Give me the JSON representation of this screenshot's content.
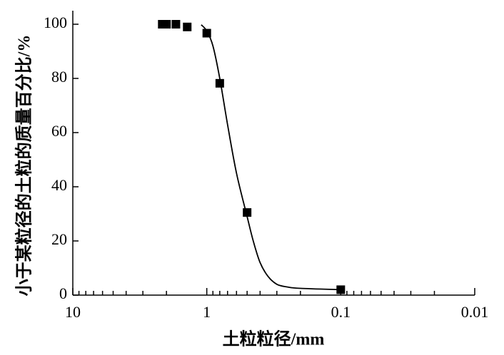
{
  "chart_data": {
    "type": "scatter-line",
    "xlabel": "土粒粒径/mm",
    "ylabel": "小于某粒径的土粒的质量百分比/%",
    "xscale": "log",
    "xlim": [
      10,
      0.01
    ],
    "xticks": [
      10,
      1,
      0.1,
      0.01
    ],
    "ylim": [
      0,
      105
    ],
    "yticks": [
      0,
      20,
      40,
      60,
      80,
      100
    ],
    "series": [
      {
        "color": "#000000",
        "marker": "square",
        "x": [
          2.15,
          2.0,
          1.7,
          1.4,
          1.0,
          0.8,
          0.5,
          0.1
        ],
        "values": [
          100,
          100,
          100,
          99,
          96.7,
          78.2,
          30.5,
          2
        ]
      },
      {
        "color": "#000000",
        "marker": "line",
        "x": [
          1.1,
          1.0,
          0.9,
          0.8,
          0.7,
          0.6,
          0.5,
          0.45,
          0.4,
          0.35,
          0.3,
          0.25,
          0.2,
          0.1
        ],
        "values": [
          99.8,
          97.5,
          92,
          80,
          63,
          45,
          29,
          20,
          12,
          7,
          4,
          3,
          2.5,
          2
        ]
      }
    ]
  }
}
